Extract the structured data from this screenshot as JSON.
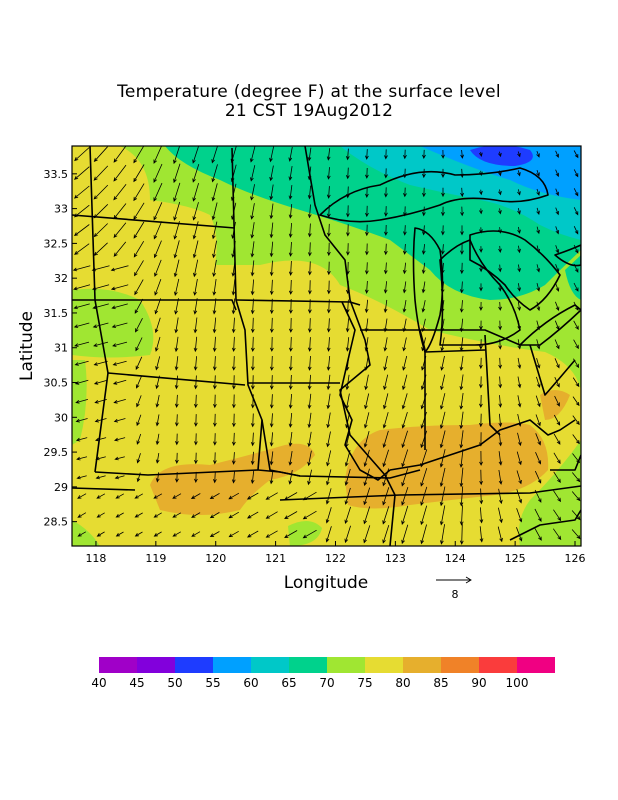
{
  "title_line1": "Temperature (degree F) at the surface level",
  "title_line2": "21 CST 19Aug2012",
  "chart_data": {
    "type": "heatmap",
    "xlabel": "Longitude",
    "ylabel": "Latitude",
    "x_ticks": [
      "118",
      "119",
      "120",
      "121",
      "122",
      "123",
      "124",
      "125",
      "126"
    ],
    "y_ticks": [
      "33.5",
      "33",
      "32.5",
      "32",
      "31.5",
      "31",
      "30.5",
      "30",
      "29.5",
      "29",
      "28.5"
    ],
    "xlim": [
      117.6,
      126.1
    ],
    "ylim": [
      28.15,
      33.9
    ],
    "vector_reference": {
      "label": "8"
    },
    "colorbar": {
      "labels": [
        "40",
        "45",
        "50",
        "55",
        "60",
        "65",
        "70",
        "75",
        "80",
        "85",
        "90",
        "100"
      ],
      "colors": [
        "#a000c8",
        "#8200dc",
        "#1e3cff",
        "#00a0ff",
        "#00c8c8",
        "#00d28c",
        "#a0e632",
        "#e6dc32",
        "#e6af2d",
        "#f08228",
        "#fa3c3c",
        "#f00082"
      ]
    },
    "wind_field": "predominantly north-to-south (southward) flow, turning westward in the west and southeast in the east"
  }
}
